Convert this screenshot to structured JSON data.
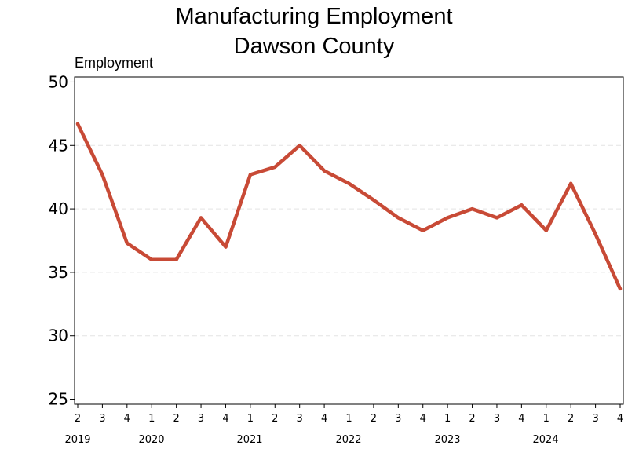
{
  "chart_data": {
    "type": "line",
    "title_line1": "Manufacturing Employment",
    "title_line2": "Dawson County",
    "ylabel": "Employment",
    "xlabel": "",
    "ylim": [
      25,
      50
    ],
    "yticks": [
      "25",
      "30",
      "35",
      "40",
      "45",
      "50"
    ],
    "grid": "horizontal-dashed",
    "line_color": "#c84a36",
    "x": [
      "2019 Q2",
      "2019 Q3",
      "2019 Q4",
      "2020 Q1",
      "2020 Q2",
      "2020 Q3",
      "2020 Q4",
      "2021 Q1",
      "2021 Q2",
      "2021 Q3",
      "2021 Q4",
      "2022 Q1",
      "2022 Q2",
      "2022 Q3",
      "2022 Q4",
      "2023 Q1",
      "2023 Q2",
      "2023 Q3",
      "2023 Q4",
      "2024 Q1",
      "2024 Q2",
      "2024 Q3",
      "2024 Q4"
    ],
    "quarter_labels": [
      "2",
      "3",
      "4",
      "1",
      "2",
      "3",
      "4",
      "1",
      "2",
      "3",
      "4",
      "1",
      "2",
      "3",
      "4",
      "1",
      "2",
      "3",
      "4",
      "1",
      "2",
      "3",
      "4"
    ],
    "year_labels": [
      "2019",
      "2020",
      "2021",
      "2022",
      "2023",
      "2024"
    ],
    "values": [
      46.7,
      42.7,
      37.3,
      36.0,
      36.0,
      39.3,
      37.0,
      42.7,
      43.3,
      45.0,
      43.0,
      42.0,
      40.7,
      39.3,
      38.3,
      39.3,
      40.0,
      39.3,
      40.3,
      38.3,
      42.0,
      38.0,
      33.7
    ]
  }
}
